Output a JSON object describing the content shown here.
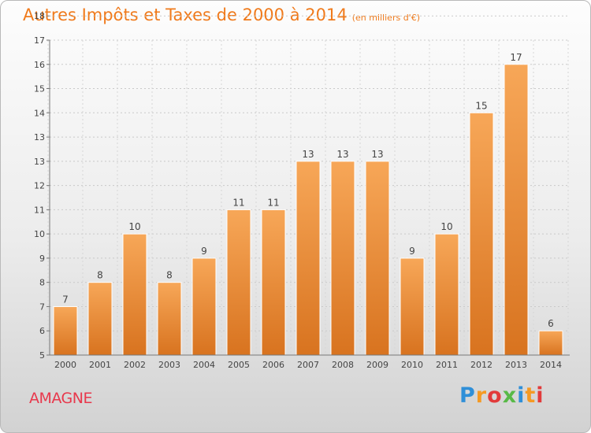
{
  "title": "Autres Impôts et Taxes de 2000 à 2014",
  "subtitle": "(en milliers d'€)",
  "commune": "AMAGNE",
  "brand": {
    "text": "Proxiti",
    "colors": [
      "#2f8fd8",
      "#f59a23",
      "#e23b3b",
      "#58b947",
      "#2f8fd8",
      "#f59a23",
      "#e23b3b"
    ]
  },
  "colors": {
    "bar_top": "#f7a758",
    "bar_bottom": "#d8731f",
    "title": "#f07a1b",
    "commune": "#e8384c"
  },
  "chart_data": {
    "type": "bar",
    "categories": [
      "2000",
      "2001",
      "2002",
      "2003",
      "2004",
      "2005",
      "2006",
      "2007",
      "2008",
      "2009",
      "2010",
      "2011",
      "2012",
      "2013",
      "2014"
    ],
    "values": [
      7,
      8,
      10,
      8,
      9,
      11,
      11,
      13,
      13,
      13,
      9,
      10,
      15,
      17,
      6
    ],
    "ylim": [
      5,
      18
    ],
    "yticks": [
      "5",
      "6",
      "7",
      "8",
      "9",
      "10",
      "11",
      "12",
      "13",
      "13",
      "14",
      "15",
      "16",
      "17",
      "18"
    ],
    "value_labels": [
      "7",
      "8",
      "10",
      "8",
      "9",
      "11",
      "11",
      "13",
      "13",
      "13",
      "9",
      "10",
      "15",
      "17",
      "6"
    ],
    "grid": true,
    "legend": "none"
  }
}
